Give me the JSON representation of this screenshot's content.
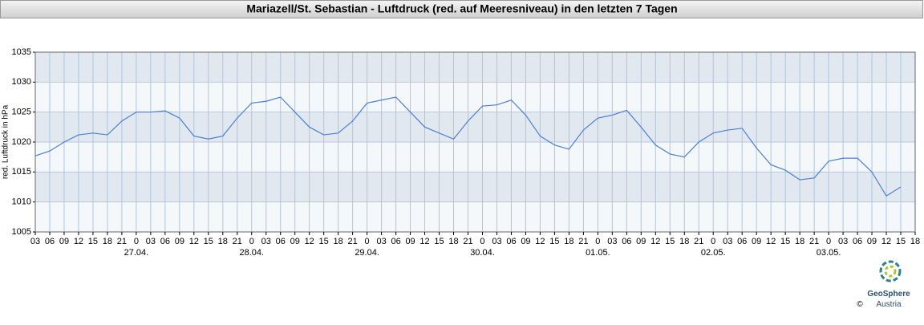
{
  "chart_data": {
    "type": "line",
    "title": "Mariazell/St. Sebastian - Luftdruck (red. auf Meeresniveau) in den letzten 7 Tagen",
    "y_label": "red. Luftdruck in hPa",
    "categories": [
      "03",
      "06",
      "09",
      "12",
      "15",
      "18",
      "21",
      "0",
      "03",
      "06",
      "09",
      "12",
      "15",
      "18",
      "21",
      "0",
      "03",
      "06",
      "09",
      "12",
      "15",
      "18",
      "21",
      "0",
      "03",
      "06",
      "09",
      "12",
      "15",
      "18",
      "21",
      "0",
      "03",
      "06",
      "09",
      "12",
      "15",
      "18",
      "21",
      "0",
      "03",
      "06",
      "09",
      "12",
      "15",
      "18",
      "21",
      "0",
      "03",
      "06",
      "09",
      "12",
      "15",
      "18",
      "21",
      "0",
      "03",
      "06",
      "09",
      "12",
      "15",
      "18"
    ],
    "date_labels": [
      null,
      null,
      null,
      null,
      null,
      null,
      null,
      "27.04.",
      null,
      null,
      null,
      null,
      null,
      null,
      null,
      "28.04.",
      null,
      null,
      null,
      null,
      null,
      null,
      null,
      "29.04.",
      null,
      null,
      null,
      null,
      null,
      null,
      null,
      "30.04.",
      null,
      null,
      null,
      null,
      null,
      null,
      null,
      "01.05.",
      null,
      null,
      null,
      null,
      null,
      null,
      null,
      "02.05.",
      null,
      null,
      null,
      null,
      null,
      null,
      null,
      "03.05.",
      null,
      null,
      null,
      null,
      null,
      null
    ],
    "series": [
      {
        "name": "red. Luftdruck",
        "color": "#4a7fd6",
        "values": [
          1017.7,
          1018.5,
          1020,
          1021.2,
          1021.5,
          1021.2,
          1023.5,
          1025,
          1025,
          1025.2,
          1024,
          1021,
          1020.5,
          1021,
          1024,
          1026.5,
          1026.8,
          1027.5,
          1025,
          1022.5,
          1021.2,
          1021.5,
          1023.5,
          1026.5,
          1027,
          1027.5,
          1025,
          1022.5,
          1021.5,
          1020.5,
          1023.5,
          1026,
          1026.2,
          1027,
          1024.5,
          1021,
          1019.5,
          1018.8,
          1022,
          1024,
          1024.5,
          1025.3,
          1022.5,
          1019.5,
          1018,
          1017.5,
          1020,
          1021.5,
          1022,
          1022.3,
          1019,
          1016.2,
          1015.3,
          1013.7,
          1014,
          1016.8,
          1017.3,
          1017.3,
          1015,
          1011,
          1012.5,
          null
        ]
      }
    ],
    "ylim": [
      1005,
      1035
    ],
    "yticks": [
      1005,
      1010,
      1015,
      1020,
      1025,
      1030,
      1035
    ],
    "grid": true
  },
  "logo": {
    "name": "GeoSphere",
    "sub": "Austria",
    "copyright": "©"
  }
}
